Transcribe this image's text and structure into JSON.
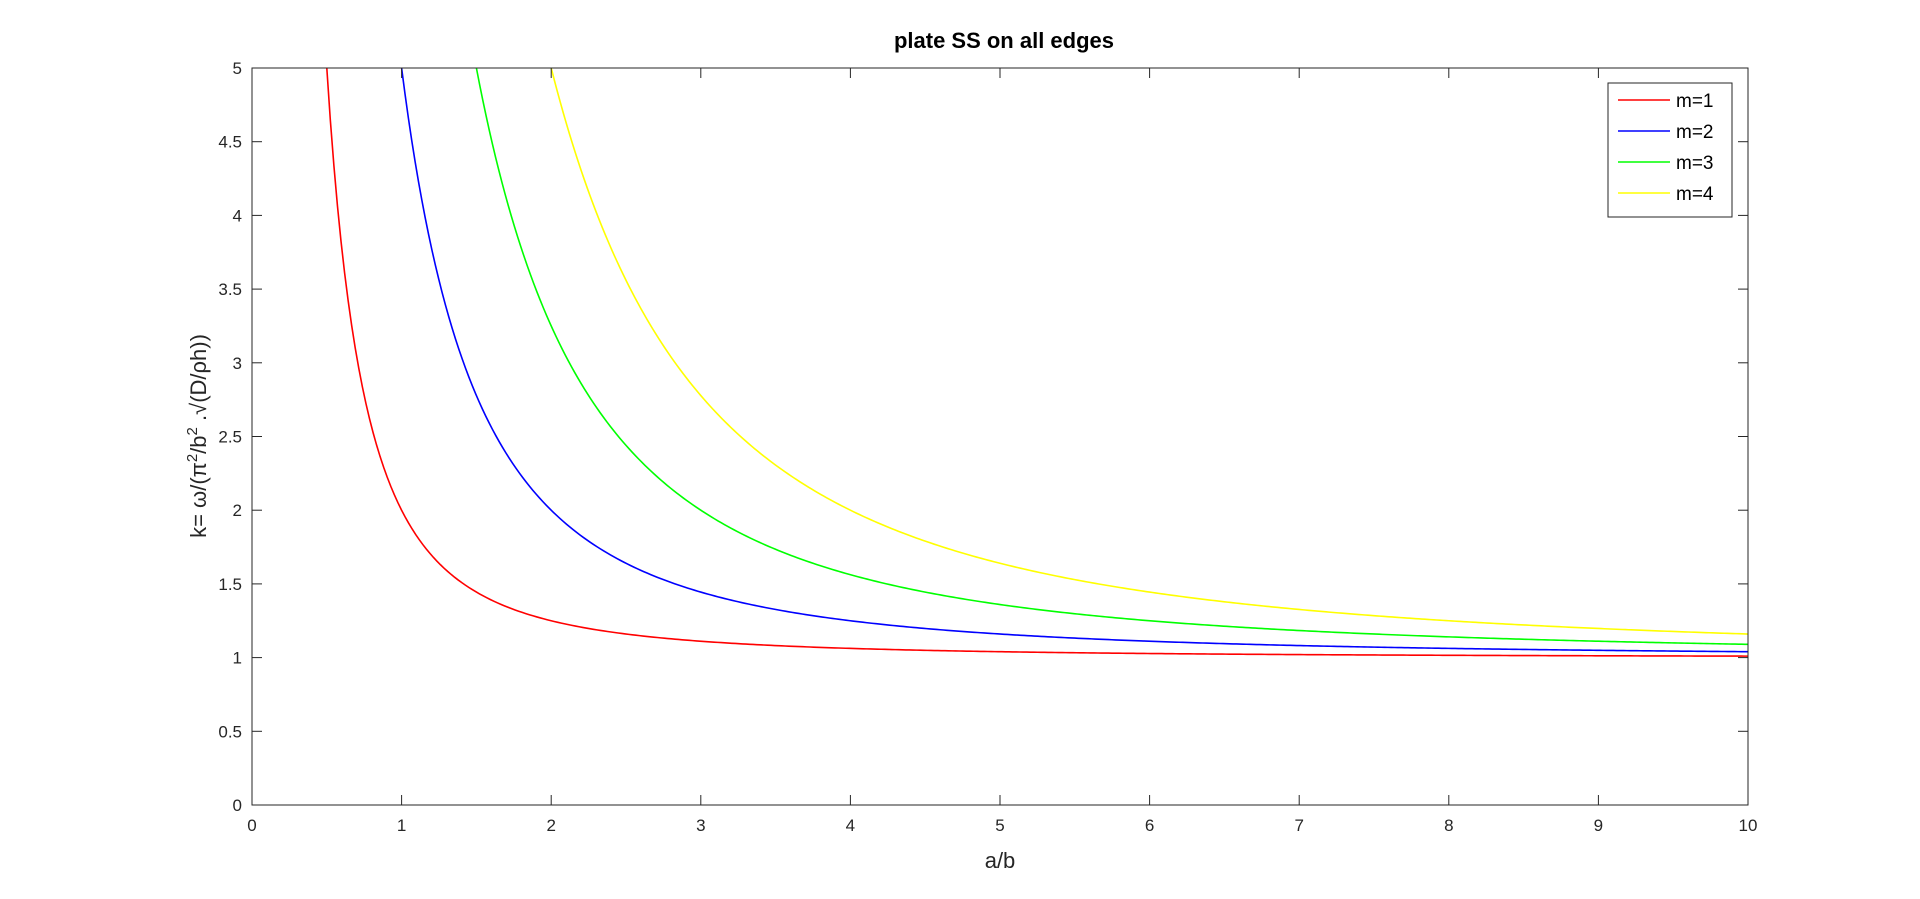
{
  "chart_data": {
    "type": "line",
    "title": "plate SS on all edges",
    "xlabel": "a/b",
    "ylabel_parts": {
      "prefix": "k=  ω/(π",
      "sup1": "2",
      "mid": "/b",
      "sup2": "2",
      "suffix": " .√(D/ρh))"
    },
    "xlim": [
      0,
      10
    ],
    "ylim": [
      0,
      5
    ],
    "xticks": [
      0,
      1,
      2,
      3,
      4,
      5,
      6,
      7,
      8,
      9,
      10
    ],
    "xtick_labels": [
      "0",
      "1",
      "2",
      "3",
      "4",
      "5",
      "6",
      "7",
      "8",
      "9",
      "10"
    ],
    "yticks": [
      0,
      0.5,
      1,
      1.5,
      2,
      2.5,
      3,
      3.5,
      4,
      4.5,
      5
    ],
    "ytick_labels": [
      "0",
      "0.5",
      "1",
      "1.5",
      "2",
      "2.5",
      "3",
      "3.5",
      "4",
      "4.5",
      "5"
    ],
    "grid": false,
    "legend_position": "top-right",
    "series": [
      {
        "name": "m=1",
        "color": "#ff0000",
        "m": 1,
        "x": [
          0.5,
          0.55,
          0.6,
          0.7,
          0.8,
          0.9,
          1.0,
          1.2,
          1.5,
          2.0,
          2.5,
          3.0,
          4.0,
          5.0,
          6.0,
          7.0,
          8.0,
          9.0,
          10.0
        ],
        "y": [
          5.0,
          4.14,
          3.51,
          2.68,
          2.2,
          1.9,
          2.0,
          1.69,
          1.44,
          1.25,
          1.16,
          1.11,
          1.06,
          1.04,
          1.03,
          1.02,
          1.02,
          1.01,
          1.01
        ]
      },
      {
        "name": "m=2",
        "color": "#0000ff",
        "m": 2,
        "x": [
          1.0,
          1.1,
          1.2,
          1.4,
          1.6,
          1.8,
          2.0,
          2.5,
          3.0,
          3.5,
          4.0,
          5.0,
          6.0,
          7.0,
          8.0,
          9.0,
          10.0
        ],
        "y": [
          5.0,
          4.31,
          3.78,
          3.04,
          2.56,
          2.23,
          2.0,
          1.64,
          1.44,
          1.33,
          1.25,
          1.16,
          1.11,
          1.08,
          1.06,
          1.05,
          1.04
        ]
      },
      {
        "name": "m=3",
        "color": "#00ff00",
        "m": 3,
        "x": [
          1.5,
          1.6,
          1.8,
          2.0,
          2.2,
          2.5,
          3.0,
          3.5,
          4.0,
          4.5,
          5.0,
          6.0,
          7.0,
          8.0,
          9.0,
          10.0
        ],
        "y": [
          5.0,
          4.52,
          3.78,
          3.25,
          2.86,
          2.44,
          2.0,
          1.73,
          1.56,
          1.44,
          1.36,
          1.25,
          1.18,
          1.14,
          1.11,
          1.09
        ]
      },
      {
        "name": "m=4",
        "color": "#ffff00",
        "m": 4,
        "x": [
          2.0,
          2.2,
          2.5,
          3.0,
          3.5,
          4.0,
          4.5,
          5.0,
          6.0,
          7.0,
          8.0,
          9.0,
          10.0
        ],
        "y": [
          5.0,
          4.31,
          3.56,
          2.78,
          2.31,
          2.0,
          1.79,
          1.64,
          1.44,
          1.33,
          1.25,
          1.2,
          1.16
        ]
      }
    ]
  }
}
